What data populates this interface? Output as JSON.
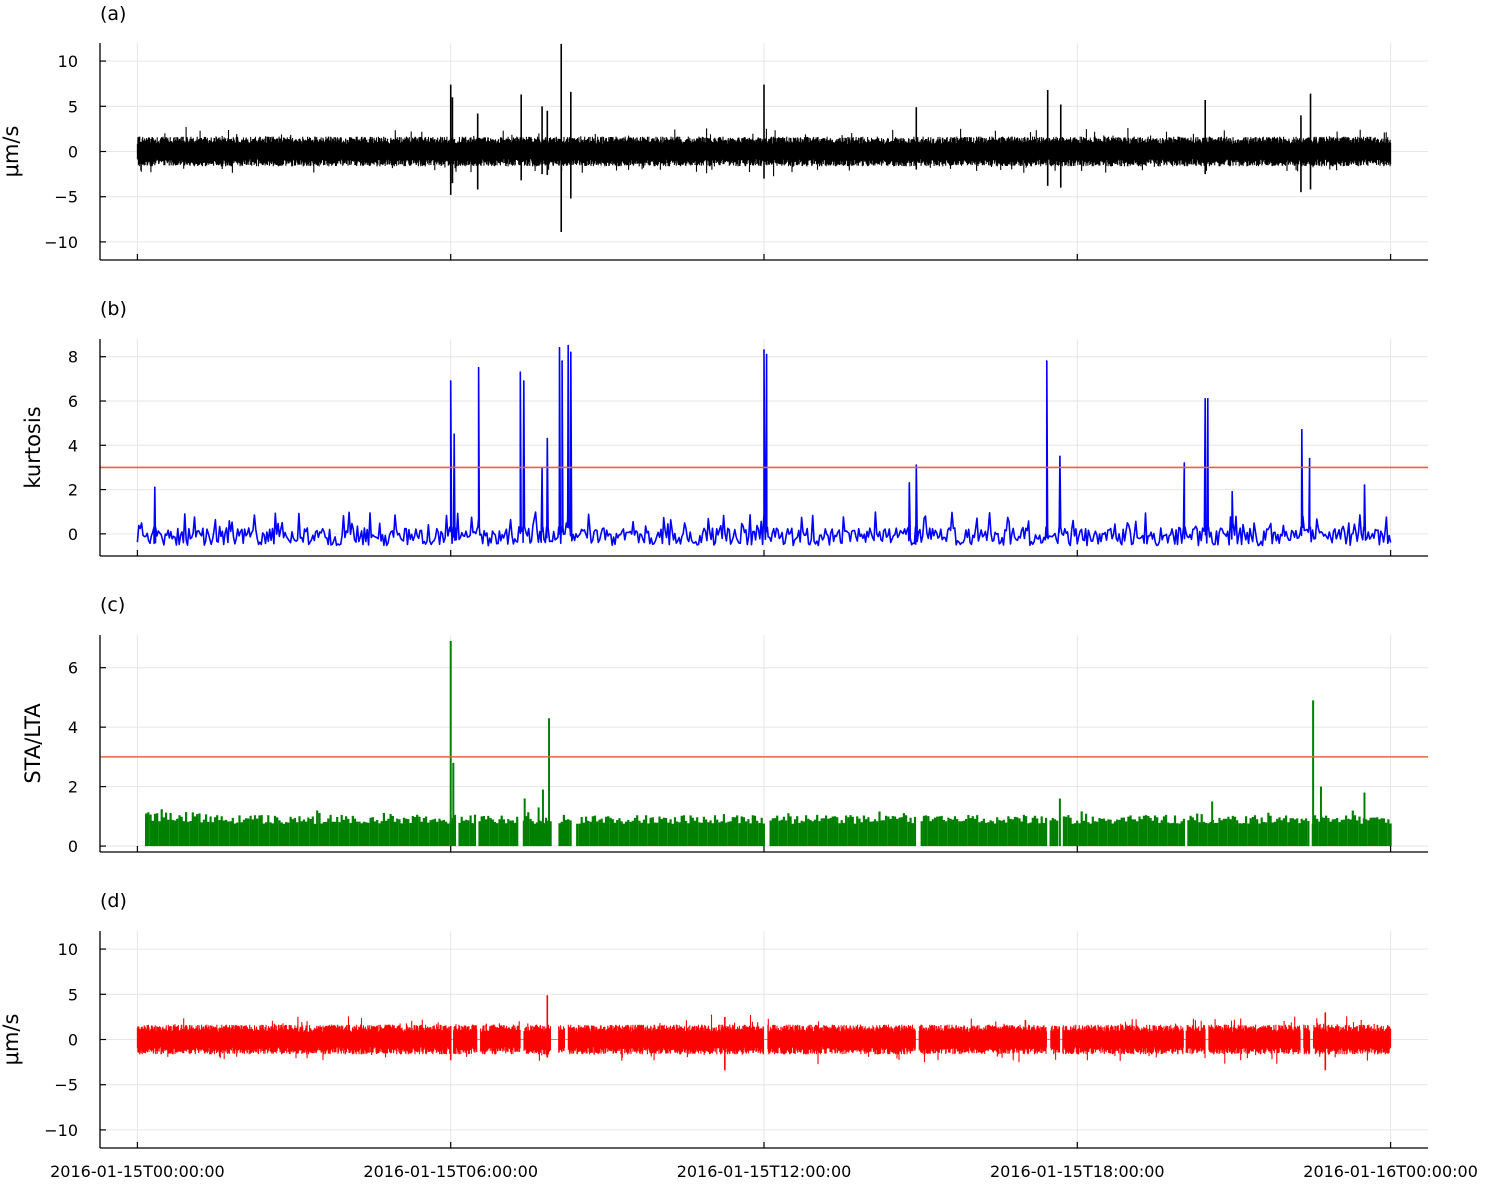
{
  "chart_data": [
    {
      "type": "line",
      "panel_label": "(a)",
      "ylabel": "μm/s",
      "ylim": [
        -12,
        12
      ],
      "yticks": [
        -10,
        -5,
        0,
        5,
        10
      ],
      "ytick_labels": [
        "−10",
        "−5",
        "0",
        "5",
        "10"
      ],
      "color": "#000000",
      "grid": true,
      "x_range": [
        "2016-01-15T00:00:00",
        "2016-01-16T00:00:00"
      ],
      "noise_amplitude": 1.5,
      "spikes": [
        {
          "x": "2016-01-15T06:00:00",
          "max": 7.4,
          "min": -4.8
        },
        {
          "x": "2016-01-15T06:02:00",
          "max": 6.0,
          "min": -3.5
        },
        {
          "x": "2016-01-15T06:31:00",
          "max": 4.2,
          "min": -4.2
        },
        {
          "x": "2016-01-15T07:21:00",
          "max": 6.3,
          "min": -3.2
        },
        {
          "x": "2016-01-15T07:45:00",
          "max": 5.0,
          "min": -2.5
        },
        {
          "x": "2016-01-15T07:51:00",
          "max": 4.5,
          "min": -2.6
        },
        {
          "x": "2016-01-15T08:07:00",
          "max": 11.9,
          "min": -8.9
        },
        {
          "x": "2016-01-15T08:18:00",
          "max": 6.6,
          "min": -5.2
        },
        {
          "x": "2016-01-15T12:00:00",
          "max": 7.4,
          "min": -3.0
        },
        {
          "x": "2016-01-15T14:55:00",
          "max": 4.9,
          "min": -2.0
        },
        {
          "x": "2016-01-15T17:26:00",
          "max": 6.8,
          "min": -3.8
        },
        {
          "x": "2016-01-15T17:41:00",
          "max": 5.2,
          "min": -4.0
        },
        {
          "x": "2016-01-15T20:27:00",
          "max": 5.7,
          "min": -2.5
        },
        {
          "x": "2016-01-15T22:17:00",
          "max": 4.0,
          "min": -4.5
        },
        {
          "x": "2016-01-15T22:28:00",
          "max": 6.4,
          "min": -4.2
        }
      ]
    },
    {
      "type": "line",
      "panel_label": "(b)",
      "ylabel": "kurtosis",
      "ylim": [
        -1,
        8.8
      ],
      "yticks": [
        0,
        2,
        4,
        6,
        8
      ],
      "ytick_labels": [
        "0",
        "2",
        "4",
        "6",
        "8"
      ],
      "color": "#0000ff",
      "grid": true,
      "threshold": 3,
      "threshold_color": "#e8643c",
      "x_range": [
        "2016-01-15T00:00:00",
        "2016-01-16T00:00:00"
      ],
      "baseline_range": [
        -0.7,
        1.0
      ],
      "peaks": [
        {
          "x": "2016-01-15T00:20:00",
          "value": 2.1
        },
        {
          "x": "2016-01-15T06:00:00",
          "value": 6.9
        },
        {
          "x": "2016-01-15T06:04:00",
          "value": 4.5
        },
        {
          "x": "2016-01-15T06:32:00",
          "value": 7.5
        },
        {
          "x": "2016-01-15T07:20:00",
          "value": 7.3
        },
        {
          "x": "2016-01-15T07:24:00",
          "value": 6.9
        },
        {
          "x": "2016-01-15T07:45:00",
          "value": 3.0
        },
        {
          "x": "2016-01-15T07:51:00",
          "value": 4.3
        },
        {
          "x": "2016-01-15T08:05:00",
          "value": 8.4
        },
        {
          "x": "2016-01-15T08:08:00",
          "value": 7.8
        },
        {
          "x": "2016-01-15T08:15:00",
          "value": 8.5
        },
        {
          "x": "2016-01-15T08:18:00",
          "value": 8.2
        },
        {
          "x": "2016-01-15T12:00:00",
          "value": 8.3
        },
        {
          "x": "2016-01-15T12:03:00",
          "value": 8.1
        },
        {
          "x": "2016-01-15T14:47:00",
          "value": 2.3
        },
        {
          "x": "2016-01-15T14:55:00",
          "value": 3.1
        },
        {
          "x": "2016-01-15T17:25:00",
          "value": 7.8
        },
        {
          "x": "2016-01-15T17:40:00",
          "value": 3.5
        },
        {
          "x": "2016-01-15T20:03:00",
          "value": 3.2
        },
        {
          "x": "2016-01-15T20:27:00",
          "value": 6.1
        },
        {
          "x": "2016-01-15T20:30:00",
          "value": 6.1
        },
        {
          "x": "2016-01-15T20:58:00",
          "value": 1.9
        },
        {
          "x": "2016-01-15T22:18:00",
          "value": 4.7
        },
        {
          "x": "2016-01-15T22:27:00",
          "value": 3.4
        },
        {
          "x": "2016-01-15T23:30:00",
          "value": 2.2
        }
      ]
    },
    {
      "type": "bar",
      "panel_label": "(c)",
      "ylabel": "STA/LTA",
      "ylim": [
        -0.2,
        7.1
      ],
      "yticks": [
        0,
        2,
        4,
        6
      ],
      "ytick_labels": [
        "0",
        "2",
        "4",
        "6"
      ],
      "color": "#008000",
      "grid": true,
      "threshold": 3,
      "threshold_color": "#e8643c",
      "x_range": [
        "2016-01-15T00:10:00",
        "2016-01-16T00:00:00"
      ],
      "baseline_range": [
        0.75,
        1.25
      ],
      "peaks": [
        {
          "x": "2016-01-15T00:10:00",
          "value": 1.1
        },
        {
          "x": "2016-01-15T06:00:00",
          "value": 6.9
        },
        {
          "x": "2016-01-15T06:03:00",
          "value": 2.8
        },
        {
          "x": "2016-01-15T07:25:00",
          "value": 1.6
        },
        {
          "x": "2016-01-15T07:41:00",
          "value": 1.3
        },
        {
          "x": "2016-01-15T07:46:00",
          "value": 1.9
        },
        {
          "x": "2016-01-15T07:53:00",
          "value": 4.3
        },
        {
          "x": "2016-01-15T17:40:00",
          "value": 1.6
        },
        {
          "x": "2016-01-15T20:35:00",
          "value": 1.5
        },
        {
          "x": "2016-01-15T22:31:00",
          "value": 4.9
        },
        {
          "x": "2016-01-15T22:40:00",
          "value": 2.0
        },
        {
          "x": "2016-01-15T23:30:00",
          "value": 1.8
        }
      ],
      "gaps": [
        [
          "2016-01-15T06:06:00",
          "2016-01-15T06:10:00"
        ],
        [
          "2016-01-15T06:30:00",
          "2016-01-15T06:33:00"
        ],
        [
          "2016-01-15T07:18:00",
          "2016-01-15T07:22:00"
        ],
        [
          "2016-01-15T07:56:00",
          "2016-01-15T08:03:00"
        ],
        [
          "2016-01-15T08:18:00",
          "2016-01-15T08:23:00"
        ],
        [
          "2016-01-15T12:01:00",
          "2016-01-15T12:06:00"
        ],
        [
          "2016-01-15T14:55:00",
          "2016-01-15T14:59:00"
        ],
        [
          "2016-01-15T17:26:00",
          "2016-01-15T17:29:00"
        ],
        [
          "2016-01-15T17:39:00",
          "2016-01-15T17:43:00"
        ],
        [
          "2016-01-15T20:03:00",
          "2016-01-15T20:06:00"
        ],
        [
          "2016-01-15T22:27:00",
          "2016-01-15T22:30:00"
        ]
      ]
    },
    {
      "type": "line",
      "panel_label": "(d)",
      "ylabel": "μm/s",
      "ylim": [
        -12,
        12
      ],
      "yticks": [
        -10,
        -5,
        0,
        5,
        10
      ],
      "ytick_labels": [
        "−10",
        "−5",
        "0",
        "5",
        "10"
      ],
      "color": "#ff0000",
      "grid": true,
      "x_range": [
        "2016-01-15T00:00:00",
        "2016-01-16T00:00:00"
      ],
      "noise_amplitude": 1.5,
      "spikes": [
        {
          "x": "2016-01-15T06:00:00",
          "max": 1.5,
          "min": -2.3
        },
        {
          "x": "2016-01-15T07:51:00",
          "max": 4.9,
          "min": -2.0
        },
        {
          "x": "2016-01-15T11:15:00",
          "max": 2.5,
          "min": -3.4
        },
        {
          "x": "2016-01-15T22:45:00",
          "max": 3.0,
          "min": -3.4
        }
      ],
      "gaps": [
        [
          "2016-01-15T06:00:00",
          "2016-01-15T06:03:00"
        ],
        [
          "2016-01-15T06:30:00",
          "2016-01-15T06:34:00"
        ],
        [
          "2016-01-15T07:20:00",
          "2016-01-15T07:24:00"
        ],
        [
          "2016-01-15T07:55:00",
          "2016-01-15T08:04:00"
        ],
        [
          "2016-01-15T08:11:00",
          "2016-01-15T08:15:00"
        ],
        [
          "2016-01-15T12:00:00",
          "2016-01-15T12:04:00"
        ],
        [
          "2016-01-15T14:54:00",
          "2016-01-15T14:58:00"
        ],
        [
          "2016-01-15T17:25:00",
          "2016-01-15T17:29:00"
        ],
        [
          "2016-01-15T17:40:00",
          "2016-01-15T17:43:00"
        ],
        [
          "2016-01-15T20:02:00",
          "2016-01-15T20:05:00"
        ],
        [
          "2016-01-15T20:27:00",
          "2016-01-15T20:31:00"
        ],
        [
          "2016-01-15T22:16:00",
          "2016-01-15T22:20:00"
        ],
        [
          "2016-01-15T22:27:00",
          "2016-01-15T22:31:00"
        ]
      ]
    }
  ],
  "xaxis": {
    "range": [
      "2016-01-14T23:17:00",
      "2016-01-16T00:43:00"
    ],
    "ticks": [
      "2016-01-15T00:00:00",
      "2016-01-15T06:00:00",
      "2016-01-15T12:00:00",
      "2016-01-15T18:00:00",
      "2016-01-16T00:00:00"
    ],
    "tick_labels": [
      "2016-01-15T00:00:00",
      "2016-01-15T06:00:00",
      "2016-01-15T12:00:00",
      "2016-01-15T18:00:00",
      "2016-01-16T00:00:00"
    ]
  }
}
